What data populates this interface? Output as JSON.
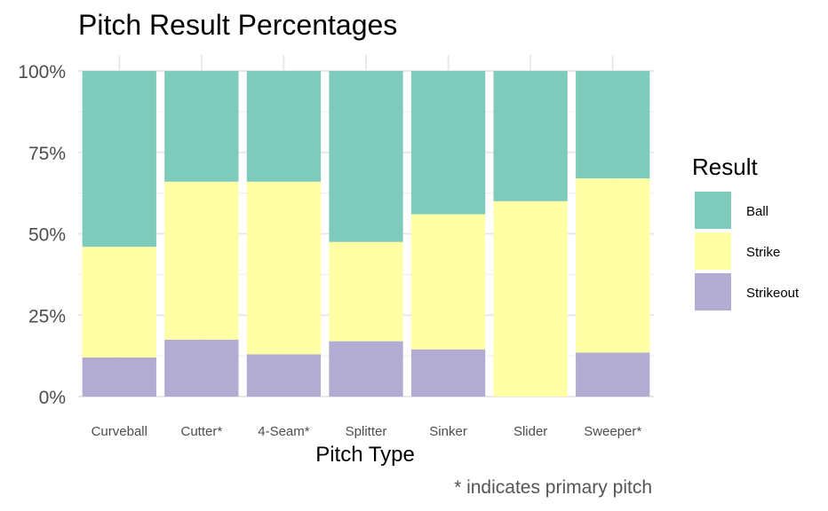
{
  "chart_data": {
    "type": "bar",
    "stacked": true,
    "normalized": true,
    "title": "Pitch Result Percentages",
    "xlabel": "Pitch Type",
    "ylabel": "",
    "caption": "* indicates primary pitch",
    "categories": [
      "Curveball",
      "Cutter*",
      "4-Seam*",
      "Splitter",
      "Sinker",
      "Slider",
      "Sweeper*"
    ],
    "ylim": [
      0,
      1
    ],
    "yticks": [
      0,
      0.25,
      0.5,
      0.75,
      1.0
    ],
    "ytick_labels": [
      "0%",
      "25%",
      "50%",
      "75%",
      "100%"
    ],
    "grid": true,
    "legend": {
      "title": "Result",
      "placement": "right"
    },
    "series": [
      {
        "name": "Strikeout",
        "color": "#b2abd2",
        "values": [
          0.12,
          0.175,
          0.13,
          0.17,
          0.145,
          0.0,
          0.135
        ]
      },
      {
        "name": "Strike",
        "color": "#ffffa6",
        "values": [
          0.34,
          0.485,
          0.53,
          0.305,
          0.415,
          0.6,
          0.535
        ]
      },
      {
        "name": "Ball",
        "color": "#7fcbbb",
        "values": [
          0.54,
          0.34,
          0.34,
          0.525,
          0.44,
          0.4,
          0.33
        ]
      }
    ],
    "legend_order": [
      "Ball",
      "Strike",
      "Strikeout"
    ]
  }
}
